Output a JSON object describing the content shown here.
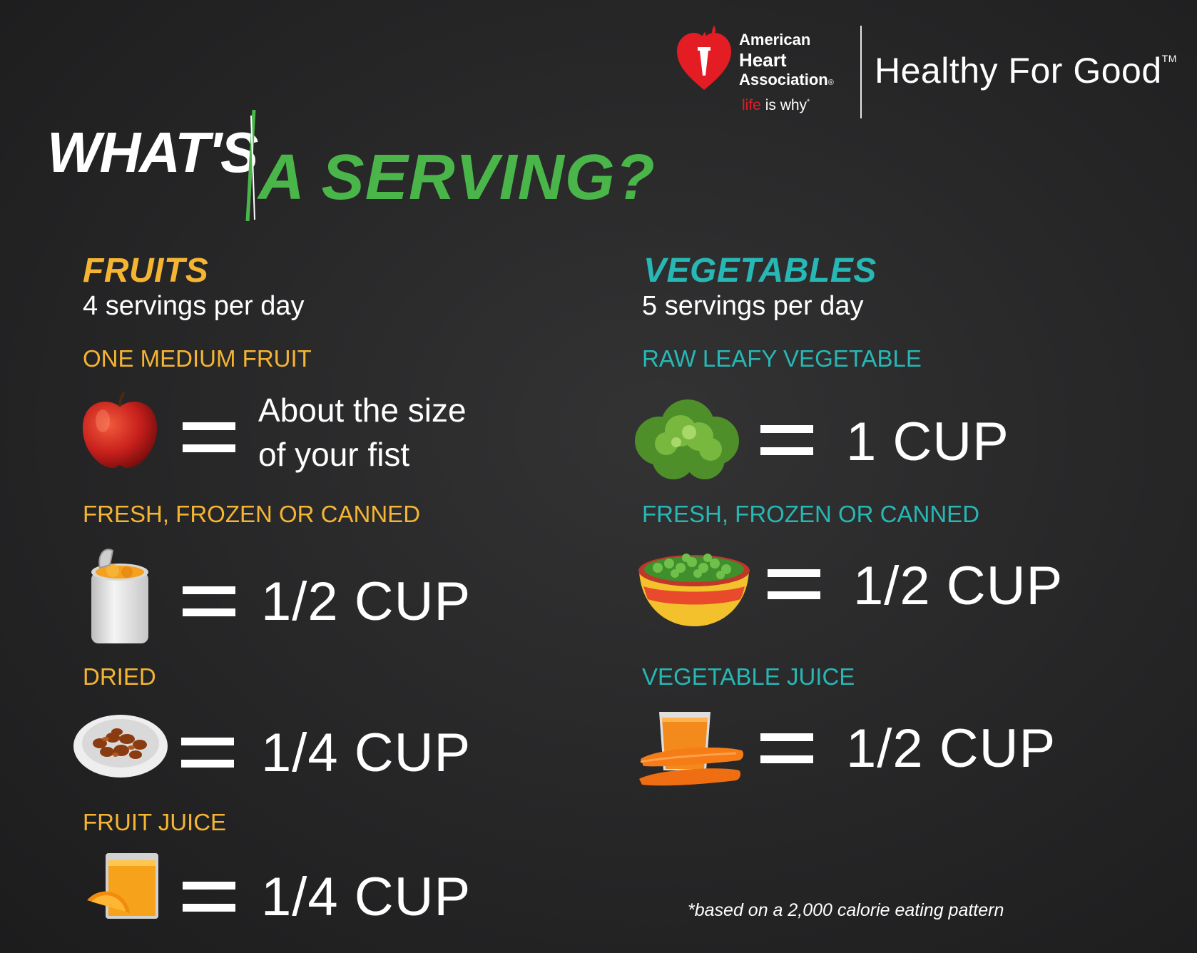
{
  "header": {
    "org_line1": "American",
    "org_line2": "Heart",
    "org_line3": "Association",
    "org_mark": "®",
    "tagline_life": "life",
    "tagline_rest": " is why",
    "tagline_mark": "*",
    "brand": "Healthy For Good",
    "brand_mark": "TM",
    "logo_icon": "heart-torch-icon"
  },
  "title": {
    "part1": "WHAT'S",
    "part2": "A SERVING?"
  },
  "colors": {
    "green": "#4ab649",
    "fruit_gold": "#f5b532",
    "veg_teal": "#27b7b5",
    "aha_red": "#e41c24"
  },
  "fruits": {
    "heading": "FRUITS",
    "servings": "4 servings per day",
    "items": [
      {
        "label": "ONE MEDIUM FRUIT",
        "icon": "apple-icon",
        "desc_line1": "About the size",
        "desc_line2": "of your fist"
      },
      {
        "label": "FRESH, FROZEN OR CANNED",
        "icon": "canned-fruit-icon",
        "amount": "1/2 CUP"
      },
      {
        "label": "DRIED",
        "icon": "raisin-bowl-icon",
        "amount": "1/4 CUP"
      },
      {
        "label": "FRUIT JUICE",
        "icon": "orange-juice-icon",
        "amount": "1/4 CUP"
      }
    ]
  },
  "vegetables": {
    "heading": "VEGETABLES",
    "servings": "5 servings per day",
    "items": [
      {
        "label": "RAW LEAFY VEGETABLE",
        "icon": "lettuce-icon",
        "amount": "1 CUP"
      },
      {
        "label": "FRESH, FROZEN OR CANNED",
        "icon": "pea-bowl-icon",
        "amount": "1/2 CUP"
      },
      {
        "label": "VEGETABLE JUICE",
        "icon": "carrot-juice-icon",
        "amount": "1/2 CUP"
      }
    ]
  },
  "footnote": "*based on a 2,000 calorie eating pattern"
}
